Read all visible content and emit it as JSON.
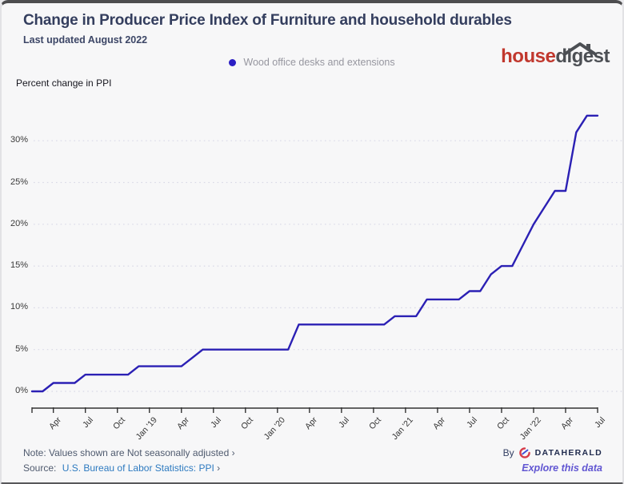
{
  "header": {
    "title": "Change in Producer Price Index of Furniture and household durables",
    "subtitle": "Last updated August 2022"
  },
  "legend": {
    "label": "Wood office desks and extensions",
    "dot_color": "#2b1fc4"
  },
  "brand": {
    "part1": "house",
    "part2": "digest",
    "part1_color": "#c1382e",
    "part2_color": "#4c4f54"
  },
  "chart_data": {
    "type": "line",
    "title": "Change in Producer Price Index of Furniture and household durables",
    "ylabel": "Percent change in PPI",
    "series_name": "Wood office desks and extensions",
    "line_color": "#2b20b4",
    "grid": "horizontal-dotted",
    "legend_position": "top-center",
    "ylim": [
      0,
      33
    ],
    "y_tick_labels": [
      "0%",
      "5%",
      "10%",
      "15%",
      "20%",
      "25%",
      "30%"
    ],
    "x_tick_labels": [
      "Apr",
      "Jul",
      "Oct",
      "Jan '19",
      "Apr",
      "Jul",
      "Oct",
      "Jan '20",
      "Apr",
      "Jul",
      "Oct",
      "Jan '21",
      "Apr",
      "Jul",
      "Oct",
      "Jan '22",
      "Apr",
      "Jul"
    ],
    "months": [
      "Feb '18",
      "Mar '18",
      "Apr '18",
      "May '18",
      "Jun '18",
      "Jul '18",
      "Aug '18",
      "Sep '18",
      "Oct '18",
      "Nov '18",
      "Dec '18",
      "Jan '19",
      "Feb '19",
      "Mar '19",
      "Apr '19",
      "May '19",
      "Jun '19",
      "Jul '19",
      "Aug '19",
      "Sep '19",
      "Oct '19",
      "Nov '19",
      "Dec '19",
      "Jan '20",
      "Feb '20",
      "Mar '20",
      "Apr '20",
      "May '20",
      "Jun '20",
      "Jul '20",
      "Aug '20",
      "Sep '20",
      "Oct '20",
      "Nov '20",
      "Dec '20",
      "Jan '21",
      "Feb '21",
      "Mar '21",
      "Apr '21",
      "May '21",
      "Jun '21",
      "Jul '21",
      "Aug '21",
      "Sep '21",
      "Oct '21",
      "Nov '21",
      "Dec '21",
      "Jan '22",
      "Feb '22",
      "Mar '22",
      "Apr '22",
      "May '22",
      "Jun '22",
      "Jul '22"
    ],
    "values": [
      0,
      0,
      1,
      1,
      1,
      2,
      2,
      2,
      2,
      2,
      3,
      3,
      3,
      3,
      3,
      4,
      5,
      5,
      5,
      5,
      5,
      5,
      5,
      5,
      5,
      8,
      8,
      8,
      8,
      8,
      8,
      8,
      8,
      8,
      9,
      9,
      9,
      11,
      11,
      11,
      11,
      12,
      12,
      14,
      15,
      15,
      17.5,
      20,
      22,
      24,
      24,
      31,
      33,
      33
    ]
  },
  "footer": {
    "note_label": "Note: Values shown are Not seasonally adjusted",
    "note_chevron": "›",
    "source_label": "Source:",
    "source_link": "U.S. Bureau of Labor Statistics: PPI",
    "source_chevron": "›",
    "by_label": "By",
    "by_brand": "DATAHERALD",
    "explore_link": "Explore this data"
  }
}
